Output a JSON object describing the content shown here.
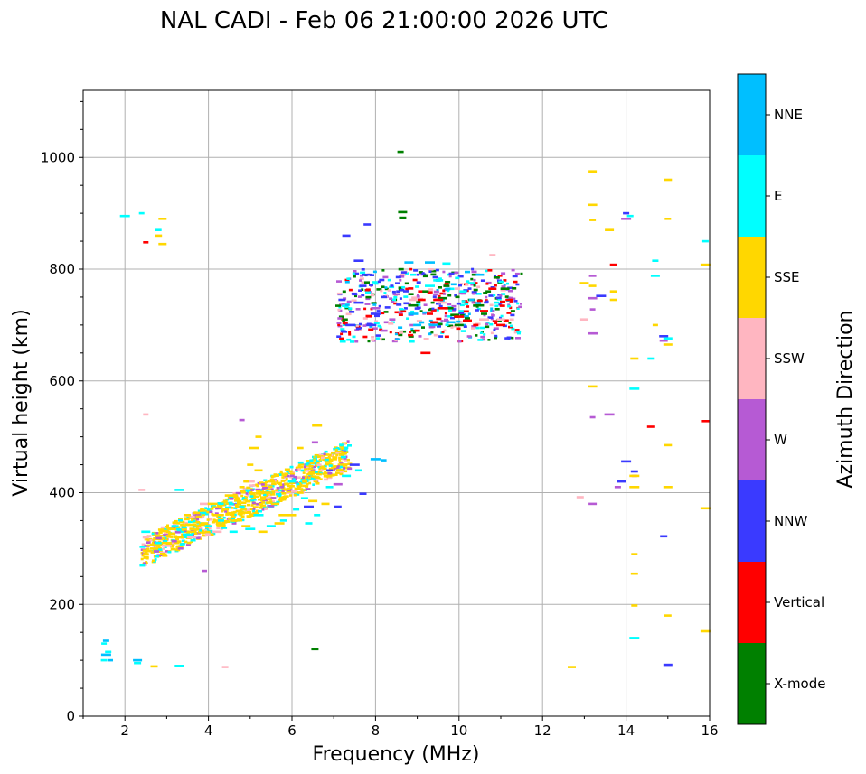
{
  "chart_data": {
    "type": "scatter",
    "title": "NAL CADI - Feb 06 21:00:00 2026 UTC",
    "xlabel": "Frequency (MHz)",
    "ylabel": "Virtual height (km)",
    "xlim": [
      1,
      16
    ],
    "ylim": [
      0,
      1120
    ],
    "xticks": [
      2,
      4,
      6,
      8,
      10,
      12,
      14,
      16
    ],
    "yticks": [
      0,
      200,
      400,
      600,
      800,
      1000
    ],
    "grid": true,
    "colorbar": {
      "label": "Azimuth Direction",
      "categories": [
        "X-mode",
        "Vertical",
        "NNW",
        "W",
        "SSW",
        "SSE",
        "E",
        "NNE"
      ],
      "colors": [
        "#008000",
        "#ff0000",
        "#3a3aff",
        "#b65ad4",
        "#ffb6c1",
        "#ffd700",
        "#00ffff",
        "#00bfff"
      ]
    },
    "series": [
      {
        "name": "X-mode",
        "points": [
          [
            8.6,
            1010
          ],
          [
            8.65,
            902
          ],
          [
            8.65,
            892
          ],
          [
            6.55,
            120
          ],
          [
            9.9,
            718
          ],
          [
            10.2,
            712
          ],
          [
            10.5,
            735
          ],
          [
            10.7,
            760
          ],
          [
            9.6,
            748
          ],
          [
            9.8,
            730
          ],
          [
            10.9,
            785
          ],
          [
            10.4,
            790
          ],
          [
            9.2,
            760
          ],
          [
            8.9,
            735
          ],
          [
            10.0,
            700
          ],
          [
            10.6,
            720
          ],
          [
            11.1,
            765
          ],
          [
            9.7,
            770
          ],
          [
            10.3,
            745
          ]
        ]
      },
      {
        "name": "Vertical",
        "points": [
          [
            9.1,
            745
          ],
          [
            9.3,
            720
          ],
          [
            9.4,
            705
          ],
          [
            9.0,
            690
          ],
          [
            9.5,
            745
          ],
          [
            10.2,
            708
          ],
          [
            10.6,
            725
          ],
          [
            11.0,
            700
          ],
          [
            10.8,
            765
          ],
          [
            9.2,
            650
          ],
          [
            14.6,
            518
          ],
          [
            15.9,
            528
          ],
          [
            13.7,
            808
          ],
          [
            2.5,
            848
          ],
          [
            9.6,
            730
          ],
          [
            10.0,
            715
          ],
          [
            10.4,
            700
          ],
          [
            11.2,
            745
          ]
        ]
      },
      {
        "name": "NNW",
        "points": [
          [
            7.5,
            755
          ],
          [
            7.6,
            740
          ],
          [
            7.4,
            700
          ],
          [
            7.8,
            790
          ],
          [
            7.6,
            815
          ],
          [
            7.7,
            770
          ],
          [
            7.3,
            860
          ],
          [
            7.8,
            880
          ],
          [
            8.2,
            750
          ],
          [
            7.2,
            745
          ],
          [
            6.4,
            375
          ],
          [
            6.9,
            440
          ],
          [
            7.1,
            375
          ],
          [
            7.7,
            398
          ],
          [
            7.5,
            450
          ],
          [
            13.4,
            752
          ],
          [
            14.0,
            900
          ],
          [
            15.0,
            92
          ],
          [
            14.9,
            680
          ],
          [
            14.9,
            322
          ],
          [
            14.0,
            456
          ],
          [
            13.9,
            420
          ],
          [
            14.2,
            438
          ],
          [
            8.0,
            720
          ],
          [
            7.9,
            700
          ]
        ]
      },
      {
        "name": "W",
        "points": [
          [
            8.4,
            710
          ],
          [
            8.2,
            690
          ],
          [
            8.0,
            730
          ],
          [
            8.5,
            755
          ],
          [
            13.2,
            788
          ],
          [
            13.2,
            748
          ],
          [
            13.2,
            728
          ],
          [
            13.2,
            685
          ],
          [
            13.2,
            535
          ],
          [
            13.2,
            380
          ],
          [
            13.6,
            540
          ],
          [
            14.0,
            890
          ],
          [
            14.9,
            672
          ],
          [
            6.55,
            490
          ],
          [
            4.8,
            530
          ],
          [
            3.9,
            260
          ],
          [
            13.8,
            410
          ],
          [
            14.2,
            430
          ],
          [
            7.1,
            415
          ]
        ]
      },
      {
        "name": "SSW",
        "points": [
          [
            2.4,
            405
          ],
          [
            2.5,
            320
          ],
          [
            3.0,
            305
          ],
          [
            3.6,
            320
          ],
          [
            4.2,
            330
          ],
          [
            8.9,
            745
          ],
          [
            9.6,
            740
          ],
          [
            10.6,
            710
          ],
          [
            11.0,
            710
          ],
          [
            10.8,
            825
          ],
          [
            12.9,
            392
          ],
          [
            13.0,
            710
          ],
          [
            2.5,
            540
          ],
          [
            4.4,
            88
          ],
          [
            3.9,
            380
          ],
          [
            5.0,
            420
          ]
        ]
      },
      {
        "name": "SSE",
        "points": [
          [
            2.9,
            890
          ],
          [
            2.8,
            860
          ],
          [
            2.9,
            845
          ],
          [
            2.5,
            290
          ],
          [
            2.7,
            300
          ],
          [
            3.0,
            310
          ],
          [
            3.3,
            320
          ],
          [
            3.6,
            330
          ],
          [
            3.9,
            345
          ],
          [
            4.2,
            360
          ],
          [
            4.4,
            370
          ],
          [
            4.7,
            390
          ],
          [
            4.9,
            420
          ],
          [
            5.0,
            450
          ],
          [
            5.1,
            480
          ],
          [
            5.2,
            500
          ],
          [
            4.6,
            350
          ],
          [
            4.9,
            340
          ],
          [
            5.3,
            330
          ],
          [
            5.5,
            420
          ],
          [
            5.6,
            380
          ],
          [
            5.8,
            360
          ],
          [
            6.0,
            360
          ],
          [
            6.2,
            400
          ],
          [
            6.5,
            385
          ],
          [
            6.8,
            380
          ],
          [
            5.2,
            440
          ],
          [
            4.8,
            410
          ],
          [
            5.4,
            400
          ],
          [
            6.6,
            520
          ],
          [
            6.2,
            480
          ],
          [
            3.5,
            360
          ],
          [
            3.1,
            335
          ],
          [
            4.1,
            380
          ],
          [
            4.5,
            395
          ],
          [
            5.7,
            345
          ],
          [
            2.7,
            89
          ],
          [
            12.7,
            88
          ],
          [
            13.2,
            975
          ],
          [
            13.2,
            915
          ],
          [
            13.2,
            888
          ],
          [
            13.2,
            770
          ],
          [
            13.2,
            590
          ],
          [
            13.6,
            870
          ],
          [
            13.7,
            760
          ],
          [
            13.7,
            745
          ],
          [
            14.2,
            640
          ],
          [
            14.2,
            430
          ],
          [
            14.2,
            410
          ],
          [
            14.2,
            290
          ],
          [
            14.2,
            255
          ],
          [
            14.2,
            198
          ],
          [
            14.7,
            700
          ],
          [
            15.0,
            665
          ],
          [
            15.0,
            485
          ],
          [
            15.0,
            410
          ],
          [
            15.0,
            180
          ],
          [
            15.0,
            960
          ],
          [
            15.0,
            890
          ],
          [
            15.9,
            372
          ],
          [
            15.9,
            152
          ],
          [
            15.9,
            808
          ],
          [
            13.0,
            775
          ]
        ]
      },
      {
        "name": "E",
        "points": [
          [
            2.0,
            895
          ],
          [
            2.5,
            330
          ],
          [
            2.8,
            310
          ],
          [
            3.2,
            340
          ],
          [
            3.5,
            325
          ],
          [
            4.0,
            340
          ],
          [
            4.3,
            350
          ],
          [
            4.8,
            375
          ],
          [
            5.2,
            360
          ],
          [
            5.5,
            340
          ],
          [
            5.8,
            350
          ],
          [
            6.1,
            370
          ],
          [
            6.3,
            390
          ],
          [
            6.6,
            360
          ],
          [
            6.9,
            410
          ],
          [
            7.3,
            430
          ],
          [
            7.6,
            440
          ],
          [
            3.3,
            405
          ],
          [
            4.6,
            330
          ],
          [
            5.0,
            335
          ],
          [
            6.0,
            420
          ],
          [
            6.4,
            345
          ],
          [
            1.5,
            130
          ],
          [
            1.5,
            100
          ],
          [
            1.6,
            115
          ],
          [
            2.3,
            95
          ],
          [
            3.3,
            90
          ],
          [
            2.8,
            870
          ],
          [
            9.7,
            810
          ],
          [
            10.3,
            775
          ],
          [
            10.1,
            760
          ],
          [
            9.5,
            780
          ],
          [
            10.9,
            740
          ],
          [
            14.2,
            586
          ],
          [
            14.2,
            140
          ],
          [
            14.6,
            640
          ],
          [
            14.7,
            815
          ],
          [
            14.7,
            788
          ],
          [
            15.0,
            676
          ],
          [
            15.9,
            850
          ],
          [
            14.1,
            895
          ],
          [
            8.9,
            790
          ],
          [
            9.3,
            770
          ],
          [
            2.4,
            900
          ]
        ]
      },
      {
        "name": "NNE",
        "points": [
          [
            1.55,
            110
          ],
          [
            1.55,
            135
          ],
          [
            1.65,
            100
          ],
          [
            2.3,
            100
          ],
          [
            8.9,
            720
          ],
          [
            9.0,
            700
          ],
          [
            10.2,
            795
          ],
          [
            10.5,
            790
          ],
          [
            9.3,
            812
          ],
          [
            8.8,
            812
          ],
          [
            9.8,
            705
          ],
          [
            9.4,
            700
          ],
          [
            8.0,
            460
          ],
          [
            8.2,
            458
          ],
          [
            10.3,
            745
          ]
        ]
      }
    ],
    "clusters": [
      {
        "series": [
          "SSE",
          "SSE",
          "SSE",
          "SSE",
          "SSE",
          "SSE",
          "E",
          "E",
          "SSW",
          "W"
        ],
        "x": [
          2.4,
          7.4
        ],
        "y": [
          285,
          460
        ],
        "slope": 0.2,
        "spread": 55,
        "count": 900
      },
      {
        "series": [
          "NNW",
          "NNW",
          "W",
          "W",
          "SSW",
          "E",
          "NNE",
          "Vertical",
          "Vertical",
          "X-mode",
          "X-mode",
          "E"
        ],
        "x": [
          7.1,
          11.5
        ],
        "y": [
          670,
          800
        ],
        "slope": 0,
        "spread": 65,
        "count": 520
      }
    ]
  }
}
